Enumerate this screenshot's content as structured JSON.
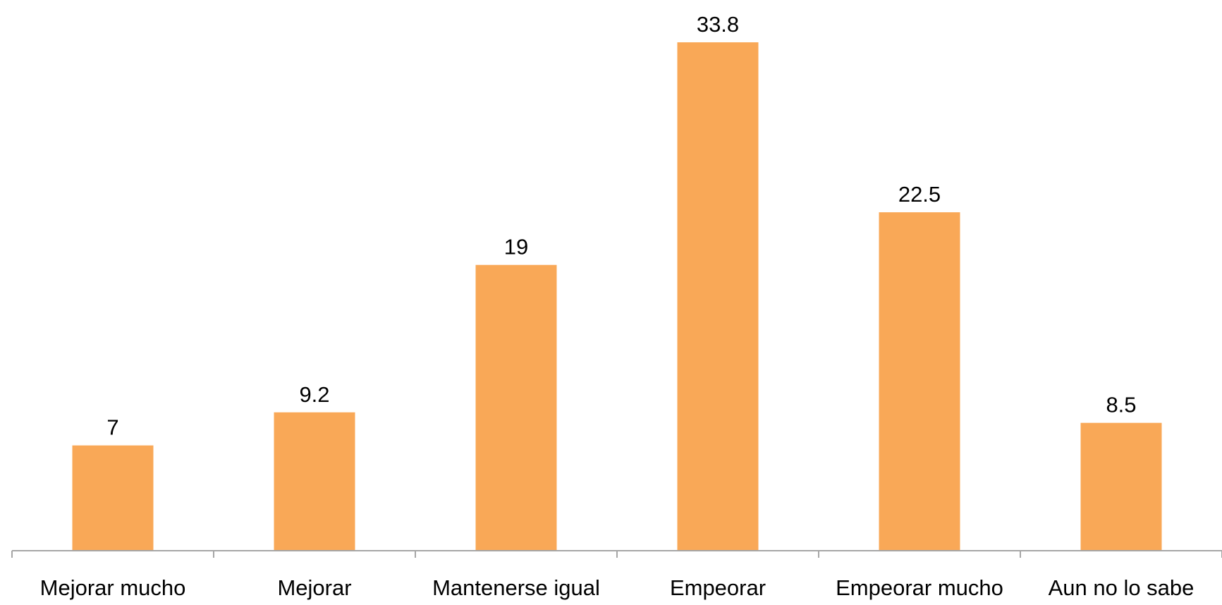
{
  "chart_data": {
    "type": "bar",
    "categories": [
      "Mejorar mucho",
      "Mejorar",
      "Mantenerse igual",
      "Empeorar",
      "Empeorar mucho",
      "Aun no lo sabe"
    ],
    "values": [
      7,
      9.2,
      19,
      33.8,
      22.5,
      8.5
    ],
    "data_labels": [
      "7",
      "9.2",
      "19",
      "33.8",
      "22.5",
      "8.5"
    ],
    "title": "",
    "xlabel": "",
    "ylabel": "",
    "ylim": [
      0,
      35
    ],
    "grid": false,
    "legend": "none",
    "bar_color": "#F9A857",
    "axis_color": "#A6A6A6"
  }
}
